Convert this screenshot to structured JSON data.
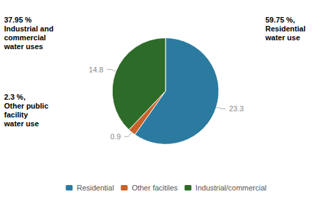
{
  "chart_data": {
    "type": "pie",
    "categories": [
      "Residential",
      "Other facitiles",
      "Industrial/commercial"
    ],
    "values": [
      23.3,
      0.9,
      14.8
    ],
    "colors": [
      "#2B7BA0",
      "#C8622A",
      "#2D6B28"
    ],
    "data_labels": true,
    "legend": "bottom",
    "annotations": [
      "59.75 %,\nResidential\nwater use",
      "2.3 %,\nOther public\nfacility\nwater use",
      "37.95 %\nIndustrial and\ncommercial\nwater uses"
    ]
  }
}
